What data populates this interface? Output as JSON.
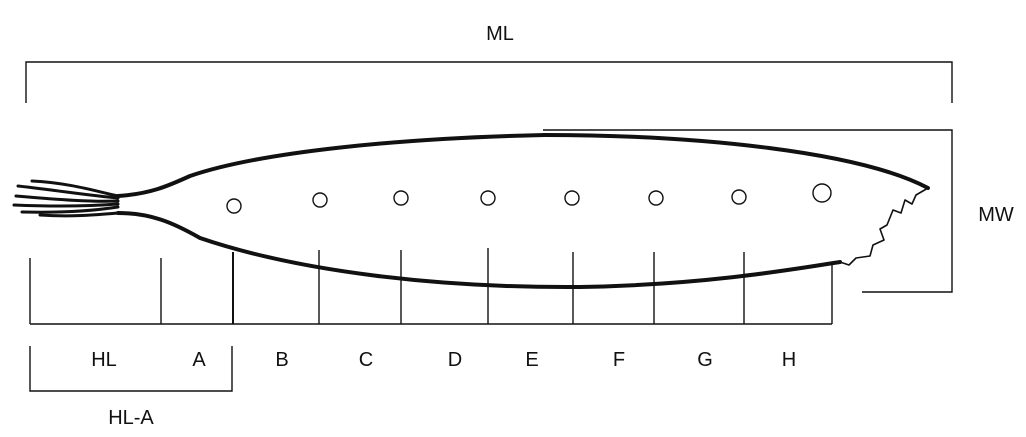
{
  "diagram": {
    "labels": {
      "ml": "ML",
      "mw": "MW",
      "hl_a": "HL-A",
      "segments": [
        "HL",
        "A",
        "B",
        "C",
        "D",
        "E",
        "F",
        "G",
        "H"
      ]
    },
    "colors": {
      "line": "#111111",
      "background": "#ffffff"
    }
  }
}
